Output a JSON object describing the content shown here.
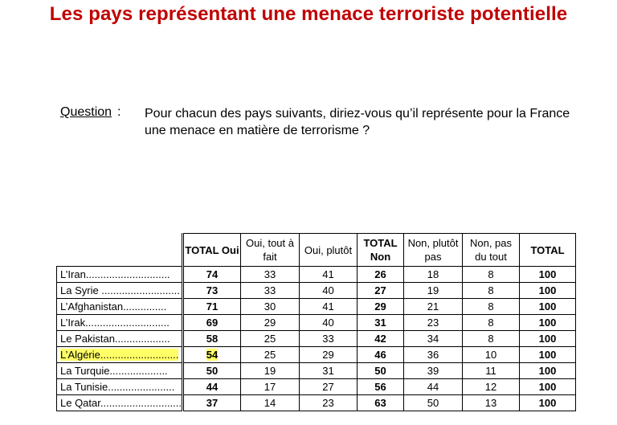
{
  "title": "Les pays représentant une menace terroriste potentielle",
  "question": {
    "label": "Question",
    "colon": ":",
    "text": "Pour chacun des pays suivants, diriez-vous qu’il représente pour la France une menace en matière de terrorisme ?"
  },
  "table": {
    "headers": [
      "TOTAL Oui",
      "Oui, tout à fait",
      "Oui, plutôt",
      "TOTAL Non",
      "Non, plutôt pas",
      "Non, pas du tout",
      "TOTAL"
    ],
    "rows": [
      {
        "country": "L’Iran.............................",
        "values": [
          "74",
          "33",
          "41",
          "26",
          "18",
          "8",
          "100"
        ]
      },
      {
        "country": "La Syrie ...........................",
        "values": [
          "73",
          "33",
          "40",
          "27",
          "19",
          "8",
          "100"
        ]
      },
      {
        "country": "L’Afghanistan...............",
        "values": [
          "71",
          "30",
          "41",
          "29",
          "21",
          "8",
          "100"
        ]
      },
      {
        "country": "L’Irak.............................",
        "values": [
          "69",
          "29",
          "40",
          "31",
          "23",
          "8",
          "100"
        ]
      },
      {
        "country": "Le Pakistan...................",
        "values": [
          "58",
          "25",
          "33",
          "42",
          "34",
          "8",
          "100"
        ]
      },
      {
        "country": "L’Algérie...........................",
        "values": [
          "54",
          "25",
          "29",
          "46",
          "36",
          "10",
          "100"
        ],
        "highlight": true
      },
      {
        "country": "La Turquie....................",
        "values": [
          "50",
          "19",
          "31",
          "50",
          "39",
          "11",
          "100"
        ]
      },
      {
        "country": "La Tunisie.......................",
        "values": [
          "44",
          "17",
          "27",
          "56",
          "44",
          "12",
          "100"
        ]
      },
      {
        "country": "Le Qatar............................",
        "values": [
          "37",
          "14",
          "23",
          "63",
          "50",
          "13",
          "100"
        ]
      }
    ],
    "highlight_color": "#ffff66"
  }
}
